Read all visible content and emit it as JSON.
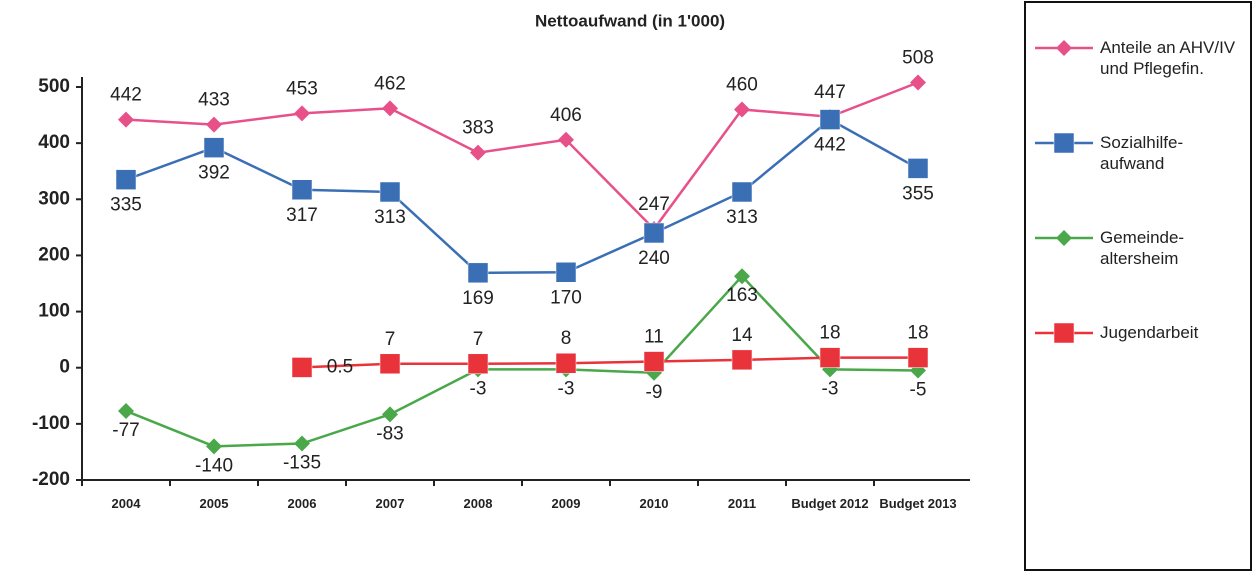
{
  "chart_data": {
    "type": "line",
    "title": "Nettoaufwand (in 1'000)",
    "categories": [
      "2004",
      "2005",
      "2006",
      "2007",
      "2008",
      "2009",
      "2010",
      "2011",
      "Budget 2012",
      "Budget 2013"
    ],
    "series": [
      {
        "name": "Anteile an AHV/IV und Pflegefin.",
        "color": "#e8508a",
        "marker": "diamond",
        "values": [
          442,
          433,
          453,
          462,
          383,
          406,
          247,
          460,
          447,
          508
        ]
      },
      {
        "name": "Sozialhilfe-aufwand",
        "color": "#3a6fb5",
        "marker": "square",
        "values": [
          335,
          392,
          317,
          313,
          169,
          170,
          240,
          313,
          442,
          355
        ]
      },
      {
        "name": "Gemeinde-altersheim",
        "color": "#4aa84a",
        "marker": "diamond",
        "values": [
          -77,
          -140,
          -135,
          -83,
          -3,
          -3,
          -9,
          163,
          -3,
          -5
        ]
      },
      {
        "name": "Jugendarbeit",
        "color": "#e8333a",
        "marker": "square",
        "values": [
          null,
          null,
          0.5,
          7,
          7,
          8,
          11,
          14,
          18,
          18
        ]
      }
    ],
    "ylim": [
      -200,
      500
    ],
    "yticks": [
      -200,
      -100,
      0,
      100,
      200,
      300,
      400,
      500
    ],
    "grid": false,
    "legend": "right"
  }
}
